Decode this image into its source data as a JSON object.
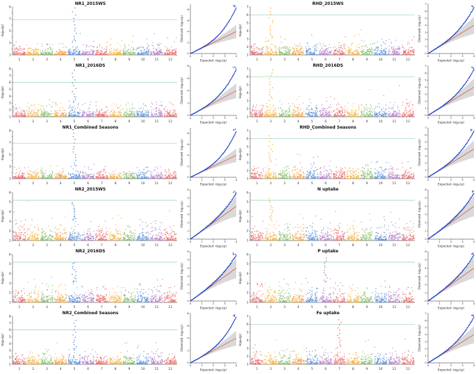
{
  "chart_data": {
    "type": "scatter",
    "description": "GWAS figure: 6x2 grid of Manhattan plots (12 rice chromosomes) each paired with a QQ plot",
    "chromosome_labels": [
      "1",
      "2",
      "3",
      "4",
      "5",
      "6",
      "7",
      "8",
      "9",
      "10",
      "11",
      "12"
    ],
    "chromosome_colors": [
      "#e96a6a",
      "#f2b33d",
      "#86bb6a",
      "#f2a13d",
      "#5c8fd6",
      "#b07fc7",
      "#e96a6a",
      "#f2b33d",
      "#86bb6a",
      "#5c8fd6",
      "#b07fc7",
      "#e96a6a"
    ],
    "labels": {
      "manhattan_ylabel": "-log₁₀(p)",
      "qq_xlabel": "Expected  -log₁₀(p)",
      "qq_ylabel": "Observed  -log₁₀(p)"
    },
    "style": {
      "qq_point_color": "#2448c8",
      "qq_line_color": "#d94a3a",
      "qq_band_color": "#c0c0c0",
      "threshold_color": "#7ec79b",
      "axis_color": "#222222",
      "title_color": "#111111",
      "points_per_chromosome": 85,
      "qq_points": 200
    },
    "panels": [
      {
        "title": "NR1_2015WS",
        "manhattan": {
          "ylim": [
            1,
            9
          ],
          "threshold": 6.9,
          "peaks": [
            {
              "chr": 5,
              "max": 8.8
            }
          ]
        },
        "qq": {
          "xlim": [
            0,
            4
          ],
          "ylim": [
            0,
            9
          ]
        }
      },
      {
        "title": "RHD_2015WS",
        "manhattan": {
          "ylim": [
            1,
            7
          ],
          "threshold": 6.0,
          "peaks": [
            {
              "chr": 2,
              "max": 6.8
            }
          ]
        },
        "qq": {
          "xlim": [
            0,
            4
          ],
          "ylim": [
            0,
            7
          ]
        }
      },
      {
        "title": "NR1_2016DS",
        "manhattan": {
          "ylim": [
            1,
            8
          ],
          "threshold": 6.0,
          "peaks": [
            {
              "chr": 5,
              "max": 7.8
            }
          ]
        },
        "qq": {
          "xlim": [
            0,
            4
          ],
          "ylim": [
            0,
            8
          ]
        }
      },
      {
        "title": "RHD_2016DS",
        "manhattan": {
          "ylim": [
            1,
            7
          ],
          "threshold": 6.0,
          "peaks": [
            {
              "chr": 2,
              "max": 6.9
            }
          ]
        },
        "qq": {
          "xlim": [
            0,
            4
          ],
          "ylim": [
            0,
            7
          ]
        }
      },
      {
        "title": "NR1_Combined Seasons",
        "manhattan": {
          "ylim": [
            1,
            9
          ],
          "threshold": 6.9,
          "peaks": [
            {
              "chr": 5,
              "max": 8.6
            }
          ]
        },
        "qq": {
          "xlim": [
            0,
            4
          ],
          "ylim": [
            0,
            9
          ]
        }
      },
      {
        "title": "RHD_Combined Seasons",
        "manhattan": {
          "ylim": [
            1,
            7
          ],
          "threshold": 6.0,
          "peaks": [
            {
              "chr": 2,
              "max": 6.3
            }
          ]
        },
        "qq": {
          "xlim": [
            0,
            4
          ],
          "ylim": [
            0,
            7
          ]
        }
      },
      {
        "title": "NR2_2015WS",
        "manhattan": {
          "ylim": [
            1,
            6
          ],
          "threshold": 5.2,
          "peaks": [
            {
              "chr": 5,
              "max": 5.0
            }
          ]
        },
        "qq": {
          "xlim": [
            0,
            4
          ],
          "ylim": [
            0,
            6
          ]
        }
      },
      {
        "title": "N uptake",
        "manhattan": {
          "ylim": [
            1,
            6
          ],
          "threshold": 5.2,
          "peaks": [
            {
              "chr": 2,
              "max": 5.4
            }
          ]
        },
        "qq": {
          "xlim": [
            0,
            4
          ],
          "ylim": [
            0,
            6
          ]
        }
      },
      {
        "title": "NR2_2016DS",
        "manhattan": {
          "ylim": [
            1,
            6
          ],
          "threshold": 5.2,
          "peaks": [
            {
              "chr": 5,
              "max": 5.2
            }
          ]
        },
        "qq": {
          "xlim": [
            0,
            4
          ],
          "ylim": [
            0,
            6
          ]
        }
      },
      {
        "title": "P uptake",
        "manhattan": {
          "ylim": [
            1,
            6
          ],
          "threshold": 5.2,
          "peaks": [
            {
              "chr": 6,
              "max": 5.6
            }
          ]
        },
        "qq": {
          "xlim": [
            0,
            4
          ],
          "ylim": [
            0,
            6
          ]
        }
      },
      {
        "title": "NR2_Combined Seasons",
        "manhattan": {
          "ylim": [
            1,
            8
          ],
          "threshold": 6.0,
          "peaks": [
            {
              "chr": 5,
              "max": 7.4
            }
          ]
        },
        "qq": {
          "xlim": [
            0,
            4
          ],
          "ylim": [
            0,
            8
          ]
        }
      },
      {
        "title": "Fe uptake",
        "manhattan": {
          "ylim": [
            1,
            7
          ],
          "threshold": 6.0,
          "peaks": [
            {
              "chr": 7,
              "max": 6.6
            }
          ]
        },
        "qq": {
          "xlim": [
            0,
            4
          ],
          "ylim": [
            0,
            7
          ]
        }
      }
    ]
  }
}
